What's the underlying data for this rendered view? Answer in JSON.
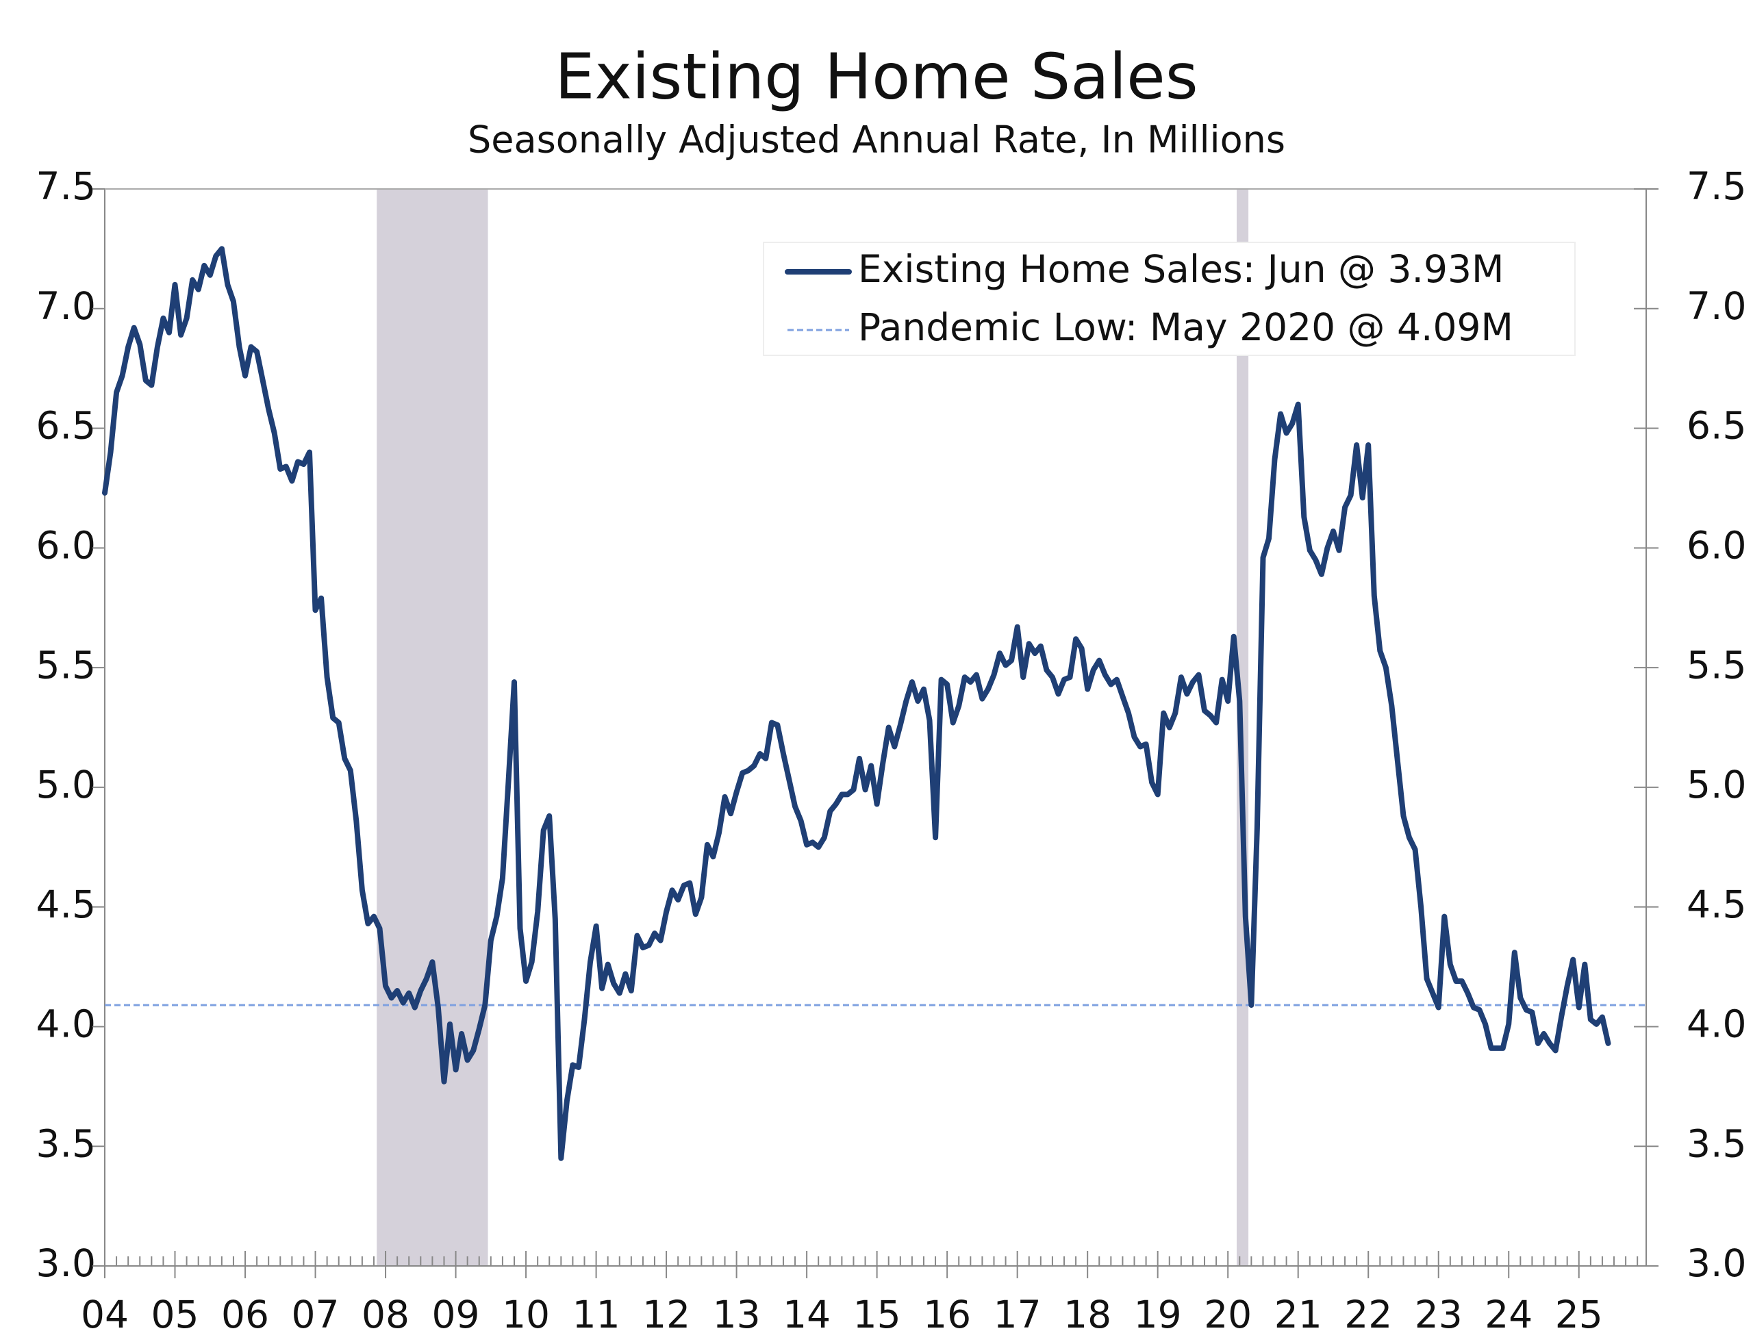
{
  "chart_data": {
    "type": "line",
    "title": "Existing Home Sales",
    "subtitle": "Seasonally Adjusted Annual Rate, In Millions",
    "categories": [
      "04",
      null,
      null,
      null,
      null,
      null,
      null,
      null,
      null,
      null,
      null,
      null,
      "05",
      null,
      null,
      null,
      null,
      null,
      null,
      null,
      null,
      null,
      null,
      null,
      "06",
      null,
      null,
      null,
      null,
      null,
      null,
      null,
      null,
      null,
      null,
      null,
      "07",
      null,
      null,
      null,
      null,
      null,
      null,
      null,
      null,
      null,
      null,
      null,
      "08",
      null,
      null,
      null,
      null,
      null,
      null,
      null,
      null,
      null,
      null,
      null,
      "09",
      null,
      null,
      null,
      null,
      null,
      null,
      null,
      null,
      null,
      null,
      null,
      "10",
      null,
      null,
      null,
      null,
      null,
      null,
      null,
      null,
      null,
      null,
      null,
      "11",
      null,
      null,
      null,
      null,
      null,
      null,
      null,
      null,
      null,
      null,
      null,
      "12",
      null,
      null,
      null,
      null,
      null,
      null,
      null,
      null,
      null,
      null,
      null,
      "13",
      null,
      null,
      null,
      null,
      null,
      null,
      null,
      null,
      null,
      null,
      null,
      "14",
      null,
      null,
      null,
      null,
      null,
      null,
      null,
      null,
      null,
      null,
      null,
      "15",
      null,
      null,
      null,
      null,
      null,
      null,
      null,
      null,
      null,
      null,
      null,
      "16",
      null,
      null,
      null,
      null,
      null,
      null,
      null,
      null,
      null,
      null,
      null,
      "17",
      null,
      null,
      null,
      null,
      null,
      null,
      null,
      null,
      null,
      null,
      null,
      "18",
      null,
      null,
      null,
      null,
      null,
      null,
      null,
      null,
      null,
      null,
      null,
      "19",
      null,
      null,
      null,
      null,
      null,
      null,
      null,
      null,
      null,
      null,
      null,
      "20",
      null,
      null,
      null,
      null,
      null,
      null,
      null,
      null,
      null,
      null,
      null,
      "21",
      null,
      null,
      null,
      null,
      null,
      null,
      null,
      null,
      null,
      null,
      null,
      "22",
      null,
      null,
      null,
      null,
      null,
      null,
      null,
      null,
      null,
      null,
      null,
      "23",
      null,
      null,
      null,
      null,
      null,
      null,
      null,
      null,
      null,
      null,
      null,
      "24",
      null,
      null,
      null,
      null,
      null,
      null,
      null,
      null,
      null,
      null,
      null,
      "25",
      null,
      null,
      null,
      null,
      null,
      null,
      null,
      null,
      null,
      null,
      null
    ],
    "series": [
      {
        "name": "Existing Home Sales: Jun @ 3.93M",
        "color": "#1f3f75",
        "values": [
          6.23,
          6.4,
          6.65,
          6.72,
          6.84,
          6.92,
          6.85,
          6.7,
          6.68,
          6.84,
          6.96,
          6.9,
          7.1,
          6.89,
          6.96,
          7.12,
          7.08,
          7.18,
          7.14,
          7.22,
          7.25,
          7.1,
          7.03,
          6.84,
          6.72,
          6.84,
          6.82,
          6.7,
          6.58,
          6.48,
          6.33,
          6.34,
          6.28,
          6.36,
          6.35,
          6.4,
          5.74,
          5.79,
          5.46,
          5.29,
          5.27,
          5.12,
          5.07,
          4.86,
          4.57,
          4.43,
          4.46,
          4.41,
          4.17,
          4.12,
          4.15,
          4.1,
          4.14,
          4.08,
          4.15,
          4.2,
          4.27,
          4.08,
          3.77,
          4.01,
          3.82,
          3.97,
          3.86,
          3.9,
          3.99,
          4.09,
          4.36,
          4.46,
          4.62,
          5.02,
          5.44,
          4.41,
          4.19,
          4.27,
          4.48,
          4.82,
          4.88,
          4.45,
          3.45,
          3.69,
          3.84,
          3.83,
          4.03,
          4.27,
          4.42,
          4.16,
          4.26,
          4.18,
          4.14,
          4.22,
          4.15,
          4.38,
          4.33,
          4.34,
          4.39,
          4.36,
          4.48,
          4.57,
          4.53,
          4.59,
          4.6,
          4.47,
          4.54,
          4.76,
          4.71,
          4.81,
          4.96,
          4.89,
          4.98,
          5.06,
          5.07,
          5.09,
          5.14,
          5.12,
          5.27,
          5.26,
          5.14,
          5.03,
          4.92,
          4.86,
          4.76,
          4.77,
          4.75,
          4.79,
          4.9,
          4.93,
          4.97,
          4.97,
          4.99,
          5.12,
          4.99,
          5.09,
          4.93,
          5.1,
          5.25,
          5.17,
          5.26,
          5.36,
          5.44,
          5.36,
          5.41,
          5.28,
          4.79,
          5.45,
          5.43,
          5.27,
          5.34,
          5.46,
          5.44,
          5.47,
          5.37,
          5.41,
          5.47,
          5.56,
          5.51,
          5.53,
          5.67,
          5.46,
          5.6,
          5.56,
          5.59,
          5.49,
          5.46,
          5.39,
          5.45,
          5.46,
          5.62,
          5.58,
          5.41,
          5.49,
          5.53,
          5.47,
          5.43,
          5.45,
          5.38,
          5.31,
          5.21,
          5.17,
          5.18,
          5.02,
          4.97,
          5.31,
          5.25,
          5.31,
          5.46,
          5.39,
          5.44,
          5.47,
          5.32,
          5.3,
          5.27,
          5.45,
          5.36,
          5.63,
          5.36,
          4.46,
          4.09,
          4.83,
          5.96,
          6.04,
          6.37,
          6.56,
          6.48,
          6.52,
          6.6,
          6.13,
          5.99,
          5.95,
          5.89,
          6.0,
          6.07,
          5.99,
          6.17,
          6.22,
          6.43,
          6.21,
          6.43,
          5.8,
          5.57,
          5.5,
          5.34,
          5.11,
          4.88,
          4.79,
          4.74,
          4.5,
          4.2,
          4.14,
          4.08,
          4.46,
          4.26,
          4.19,
          4.19,
          4.14,
          4.08,
          4.07,
          4.01,
          3.91,
          3.91,
          3.91,
          4.01,
          4.31,
          4.12,
          4.07,
          4.06,
          3.93,
          3.97,
          3.93,
          3.9,
          4.04,
          4.17,
          4.28,
          4.08,
          4.26,
          4.03,
          4.01,
          4.04,
          3.93,
          null,
          null,
          null,
          null,
          null,
          null
        ]
      }
    ],
    "reference_line": {
      "name": "Pandemic Low: May 2020 @ 4.09M",
      "value": 4.09,
      "color": "#7fa1e0"
    },
    "shaded_periods": [
      {
        "start": 47,
        "end": 65
      },
      {
        "start": 194,
        "end": 195
      }
    ],
    "shade_color": "#d5d1da",
    "ylim": [
      3,
      7.5
    ],
    "yticks": [
      {
        "value": 3,
        "label": "3.0"
      },
      3.5,
      {
        "value": 4,
        "label": "4.0"
      },
      4.5,
      {
        "value": 5,
        "label": "5.0"
      },
      5.5,
      {
        "value": 6,
        "label": "6.0"
      },
      6.5,
      {
        "value": 7,
        "label": "7.0"
      },
      7.5
    ],
    "legend": "upper right"
  }
}
